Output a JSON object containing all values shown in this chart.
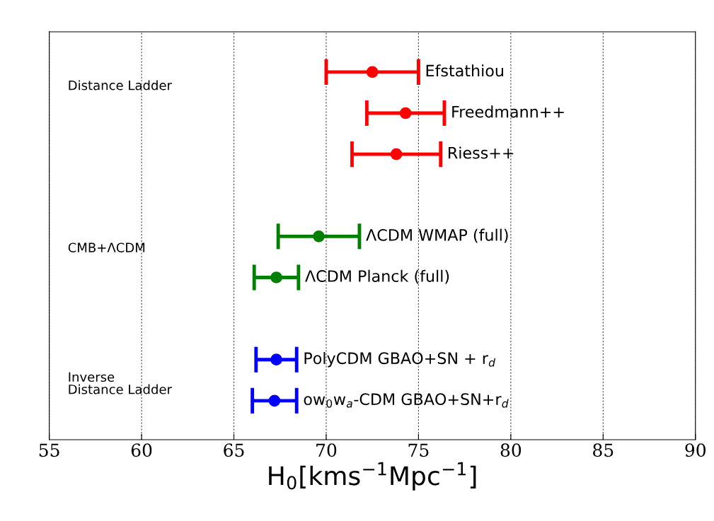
{
  "chart_data": {
    "type": "scatter",
    "categories": [
      "Efstathiou",
      "Freedmann++",
      "Riess++",
      null,
      "ΛCDM WMAP (full)",
      "ΛCDM Planck (full)",
      null,
      "PolyCDM GBAO+SN + r$_{d}$",
      "ow$_{0}$w$_{a}$-CDM GBAO+SN+r$_{d}$"
    ],
    "series": [
      {
        "color": "#ff0000",
        "values": [
          72.5,
          74.3,
          73.8,
          null,
          null,
          null,
          null,
          null,
          null
        ],
        "errors": [
          2.5,
          2.1,
          2.4,
          null,
          null,
          null,
          null,
          null,
          null
        ]
      },
      {
        "color": "#008000",
        "values": [
          null,
          null,
          null,
          null,
          69.6,
          67.3,
          null,
          null,
          null
        ],
        "errors": [
          null,
          null,
          null,
          null,
          2.2,
          1.2,
          null,
          null,
          null
        ]
      },
      {
        "color": "#0000ff",
        "values": [
          null,
          null,
          null,
          null,
          null,
          null,
          null,
          67.3,
          67.2
        ],
        "errors": [
          null,
          null,
          null,
          null,
          null,
          null,
          null,
          1.1,
          1.2
        ]
      }
    ],
    "orientation": "horizontal",
    "xlim": [
      55,
      90
    ],
    "xticks": [
      55,
      60,
      65,
      70,
      75,
      80,
      85,
      90
    ],
    "xlabel": "H$_{0}$[kms$^{−1}$Mpc$^{−1}$]",
    "annotations": [
      "Distance Ladder",
      "CMB+ΛCDM",
      "Inverse\nDistance Ladder"
    ],
    "grid": "x",
    "marker": "circle",
    "tick_labels": "x"
  }
}
